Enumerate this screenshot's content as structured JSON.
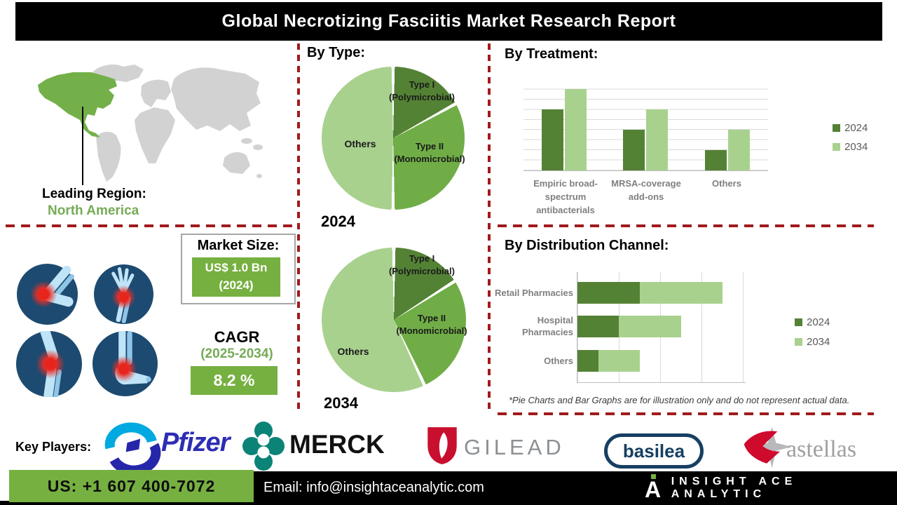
{
  "title": "Global Necrotizing Fasciitis Market Research Report",
  "left_panel": {
    "leading_region_label": "Leading Region:",
    "leading_region_value": "North America",
    "market_size": {
      "label": "Market Size:",
      "value": "US$ 1.0 Bn",
      "year": "(2024)"
    },
    "cagr": {
      "label": "CAGR",
      "period": "(2025-2034)",
      "value": "8.2 %"
    }
  },
  "sections": {
    "by_type": "By Type:",
    "by_treatment": "By Treatment:",
    "by_distribution": "By Distribution Channel:"
  },
  "footnote": "*Pie Charts and Bar Graphs are for illustration only and do not represent actual data.",
  "key_players_label": "Key Players:",
  "logos": {
    "pfizer": "Pfizer",
    "merck": "MERCK",
    "gilead": "GILEAD",
    "basilea": "basilea",
    "astellas": "astellas"
  },
  "footer": {
    "phone": "US: +1 607 400-7072",
    "email": "Email: info@insightaceanalytic.com",
    "brand": "INSIGHT ACE ANALYTIC"
  },
  "colors": {
    "accent_green": "#76b041",
    "dark_green": "#548235",
    "mid_green": "#70ad47",
    "light_green": "#a9d18e",
    "dashed_red": "#a11a1c",
    "map_green": "#74b049",
    "map_gray": "#d2d2d2",
    "xray_navy": "#1d4a70",
    "chart_text_gray": "#7f7f7f"
  },
  "chart_data": [
    {
      "type": "pie",
      "year": "2024",
      "title": "By Type (2024)",
      "slices": [
        {
          "label": "Type I (Polymicrobial)",
          "value": 17,
          "color": "#548235"
        },
        {
          "label": "Type II (Monomicrobial)",
          "value": 33,
          "color": "#70ad47"
        },
        {
          "label": "Others",
          "value": 50,
          "color": "#a9d18e"
        }
      ],
      "note": "illustrative shares, start at 12 o'clock clockwise"
    },
    {
      "type": "pie",
      "year": "2034",
      "title": "By Type (2034)",
      "slices": [
        {
          "label": "Type I (Polymicrobial)",
          "value": 16,
          "color": "#548235"
        },
        {
          "label": "Type II (Monomicrobial)",
          "value": 27,
          "color": "#70ad47"
        },
        {
          "label": "Others",
          "value": 57,
          "color": "#a9d18e"
        }
      ],
      "note": "illustrative shares, start at 12 o'clock clockwise"
    },
    {
      "type": "bar",
      "title": "By Treatment",
      "categories": [
        "Empiric broad-spectrum antibacterials",
        "MRSA-coverage add-ons",
        "Others"
      ],
      "series": [
        {
          "name": "2024",
          "color": "#548235",
          "values": [
            6,
            4,
            2
          ]
        },
        {
          "name": "2034",
          "color": "#a9d18e",
          "values": [
            8,
            6,
            4
          ]
        }
      ],
      "ylim": [
        0,
        9
      ],
      "grid": "horizontal",
      "legend_position": "right",
      "note": "illustrative relative units"
    },
    {
      "type": "bar-horizontal-stacked",
      "title": "By Distribution Channel",
      "categories": [
        "Retail Pharmacies",
        "Hospital Pharmacies",
        "Others"
      ],
      "series": [
        {
          "name": "2024",
          "color": "#548235",
          "values": [
            3,
            2,
            1
          ]
        },
        {
          "name": "2034",
          "color": "#a9d18e",
          "values": [
            4,
            3,
            2
          ]
        }
      ],
      "xlim": [
        0,
        8
      ],
      "grid": "vertical",
      "legend_position": "right",
      "note": "illustrative relative units"
    }
  ]
}
